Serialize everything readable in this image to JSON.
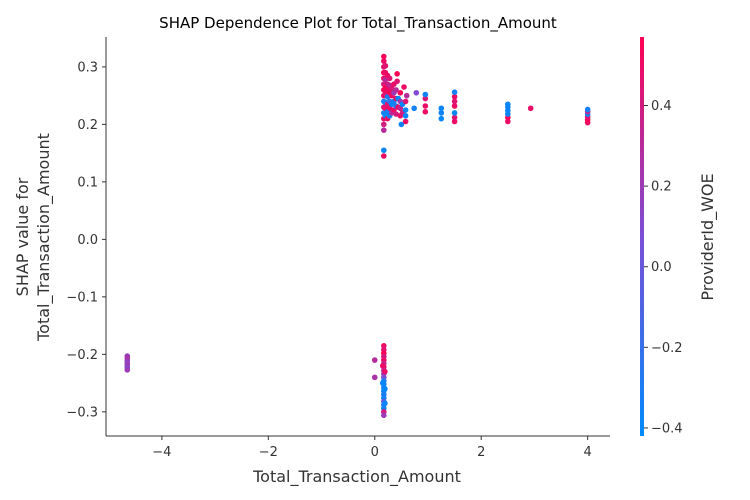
{
  "chart_data": {
    "type": "scatter",
    "title": "SHAP Dependence Plot for Total_Transaction_Amount",
    "xlabel": "Total_Transaction_Amount",
    "ylabel_lines": [
      "SHAP value for",
      "Total_Transaction_Amount"
    ],
    "color_label": "ProviderId_WOE",
    "xlim": [
      -5.05,
      4.42
    ],
    "ylim": [
      -0.342,
      0.352
    ],
    "x_ticks": [
      -4,
      -2,
      0,
      2,
      4
    ],
    "x_tick_labels": [
      "−4",
      "−2",
      "0",
      "2",
      "4"
    ],
    "y_ticks": [
      -0.3,
      -0.2,
      -0.1,
      0.0,
      0.1,
      0.2,
      0.3
    ],
    "y_tick_labels": [
      "−0.3",
      "−0.2",
      "−0.1",
      "0.0",
      "0.1",
      "0.2",
      "0.3"
    ],
    "color_range": [
      -0.42,
      0.57
    ],
    "color_ticks": [
      -0.4,
      -0.2,
      0.0,
      0.2,
      0.4
    ],
    "color_tick_labels": [
      "−0.4",
      "−0.2",
      "0.0",
      "0.2",
      "0.4"
    ],
    "colormap": [
      "#008AFA",
      "#7A4FD6",
      "#FF0052"
    ],
    "grid": false,
    "points": [
      [
        -4.65,
        -0.203,
        0.18
      ],
      [
        -4.65,
        -0.207,
        0.25
      ],
      [
        -4.65,
        -0.211,
        0.2
      ],
      [
        -4.65,
        -0.215,
        0.15
      ],
      [
        -4.65,
        -0.219,
        0.22
      ],
      [
        -4.65,
        -0.223,
        0.12
      ],
      [
        -4.65,
        -0.227,
        0.2
      ],
      [
        0.0,
        -0.21,
        0.3
      ],
      [
        0.0,
        -0.24,
        0.25
      ],
      [
        0.17,
        -0.185,
        0.5
      ],
      [
        0.17,
        -0.192,
        0.45
      ],
      [
        0.17,
        -0.198,
        0.55
      ],
      [
        0.17,
        -0.204,
        0.4
      ],
      [
        0.17,
        -0.21,
        0.5
      ],
      [
        0.17,
        -0.216,
        0.35
      ],
      [
        0.17,
        -0.222,
        0.45
      ],
      [
        0.17,
        -0.228,
        0.3
      ],
      [
        0.17,
        -0.234,
        0.2
      ],
      [
        0.17,
        -0.24,
        0.1
      ],
      [
        0.17,
        -0.246,
        -0.3
      ],
      [
        0.17,
        -0.252,
        -0.35
      ],
      [
        0.17,
        -0.258,
        -0.3
      ],
      [
        0.17,
        -0.264,
        -0.38
      ],
      [
        0.17,
        -0.27,
        -0.32
      ],
      [
        0.17,
        -0.276,
        -0.35
      ],
      [
        0.17,
        -0.282,
        0.0
      ],
      [
        0.17,
        -0.288,
        -0.3
      ],
      [
        0.17,
        -0.294,
        -0.35
      ],
      [
        0.17,
        -0.3,
        0.4
      ],
      [
        0.17,
        -0.306,
        0.2
      ],
      [
        0.15,
        -0.22,
        0.5
      ],
      [
        0.19,
        -0.23,
        0.5
      ],
      [
        0.15,
        -0.25,
        -0.4
      ],
      [
        0.19,
        -0.26,
        -0.4
      ],
      [
        0.19,
        -0.285,
        -0.38
      ],
      [
        0.17,
        0.145,
        0.5
      ],
      [
        0.17,
        0.155,
        -0.38
      ],
      [
        0.17,
        0.19,
        0.3
      ],
      [
        0.17,
        0.2,
        0.4
      ],
      [
        0.17,
        0.21,
        0.5
      ],
      [
        0.17,
        0.22,
        -0.3
      ],
      [
        0.17,
        0.23,
        0.45
      ],
      [
        0.17,
        0.24,
        -0.35
      ],
      [
        0.17,
        0.25,
        0.5
      ],
      [
        0.17,
        0.26,
        0.55
      ],
      [
        0.17,
        0.27,
        0.4
      ],
      [
        0.17,
        0.28,
        0.5
      ],
      [
        0.17,
        0.29,
        0.55
      ],
      [
        0.17,
        0.3,
        0.45
      ],
      [
        0.17,
        0.31,
        0.5
      ],
      [
        0.17,
        0.318,
        0.55
      ],
      [
        0.2,
        0.215,
        -0.4
      ],
      [
        0.2,
        0.228,
        0.5
      ],
      [
        0.2,
        0.238,
        -0.3
      ],
      [
        0.2,
        0.252,
        0.45
      ],
      [
        0.2,
        0.265,
        0.55
      ],
      [
        0.2,
        0.278,
        0.3
      ],
      [
        0.2,
        0.29,
        0.5
      ],
      [
        0.2,
        0.302,
        0.45
      ],
      [
        0.24,
        0.21,
        0.5
      ],
      [
        0.24,
        0.222,
        -0.35
      ],
      [
        0.24,
        0.235,
        0.45
      ],
      [
        0.24,
        0.248,
        -0.3
      ],
      [
        0.24,
        0.26,
        0.5
      ],
      [
        0.24,
        0.27,
        0.4
      ],
      [
        0.24,
        0.285,
        0.5
      ],
      [
        0.28,
        0.215,
        -0.35
      ],
      [
        0.28,
        0.228,
        0.5
      ],
      [
        0.28,
        0.24,
        -0.2
      ],
      [
        0.28,
        0.255,
        0.55
      ],
      [
        0.28,
        0.268,
        0.35
      ],
      [
        0.28,
        0.28,
        0.45
      ],
      [
        0.32,
        0.22,
        0.3
      ],
      [
        0.32,
        0.235,
        -0.38
      ],
      [
        0.32,
        0.25,
        0.5
      ],
      [
        0.32,
        0.262,
        0.45
      ],
      [
        0.36,
        0.225,
        0.5
      ],
      [
        0.36,
        0.24,
        -0.35
      ],
      [
        0.36,
        0.255,
        0.2
      ],
      [
        0.36,
        0.27,
        0.5
      ],
      [
        0.4,
        0.218,
        0.4
      ],
      [
        0.4,
        0.232,
        -0.3
      ],
      [
        0.4,
        0.245,
        0.5
      ],
      [
        0.4,
        0.26,
        0.3
      ],
      [
        0.42,
        0.275,
        0.45
      ],
      [
        0.42,
        0.288,
        0.55
      ],
      [
        0.44,
        0.23,
        0.5
      ],
      [
        0.44,
        0.245,
        -0.4
      ],
      [
        0.48,
        0.215,
        0.5
      ],
      [
        0.48,
        0.228,
        0.35
      ],
      [
        0.48,
        0.24,
        0.2
      ],
      [
        0.48,
        0.255,
        0.55
      ],
      [
        0.5,
        0.2,
        -0.35
      ],
      [
        0.52,
        0.22,
        0.4
      ],
      [
        0.52,
        0.235,
        -0.38
      ],
      [
        0.55,
        0.265,
        0.5
      ],
      [
        0.58,
        0.205,
        0.5
      ],
      [
        0.58,
        0.215,
        -0.38
      ],
      [
        0.58,
        0.225,
        -0.4
      ],
      [
        0.58,
        0.24,
        0.45
      ],
      [
        0.6,
        0.25,
        0.3
      ],
      [
        0.74,
        0.228,
        -0.35
      ],
      [
        0.78,
        0.255,
        0.1
      ],
      [
        0.95,
        0.222,
        0.5
      ],
      [
        0.95,
        0.232,
        0.5
      ],
      [
        0.95,
        0.245,
        0.45
      ],
      [
        0.95,
        0.252,
        -0.35
      ],
      [
        1.25,
        0.21,
        -0.4
      ],
      [
        1.25,
        0.22,
        -0.35
      ],
      [
        1.25,
        0.228,
        -0.38
      ],
      [
        1.5,
        0.205,
        0.5
      ],
      [
        1.5,
        0.212,
        0.45
      ],
      [
        1.5,
        0.22,
        -0.38
      ],
      [
        1.5,
        0.232,
        0.5
      ],
      [
        1.5,
        0.24,
        0.45
      ],
      [
        1.5,
        0.248,
        0.5
      ],
      [
        1.5,
        0.256,
        -0.35
      ],
      [
        2.5,
        0.205,
        0.5
      ],
      [
        2.5,
        0.212,
        0.55
      ],
      [
        2.5,
        0.218,
        -0.38
      ],
      [
        2.5,
        0.224,
        -0.4
      ],
      [
        2.5,
        0.23,
        -0.35
      ],
      [
        2.5,
        0.235,
        -0.38
      ],
      [
        2.93,
        0.228,
        0.5
      ],
      [
        4.0,
        0.203,
        0.5
      ],
      [
        4.0,
        0.208,
        0.55
      ],
      [
        4.0,
        0.213,
        0.45
      ],
      [
        4.0,
        0.218,
        -0.38
      ],
      [
        4.0,
        0.222,
        0.3
      ],
      [
        4.0,
        0.226,
        -0.35
      ]
    ]
  }
}
